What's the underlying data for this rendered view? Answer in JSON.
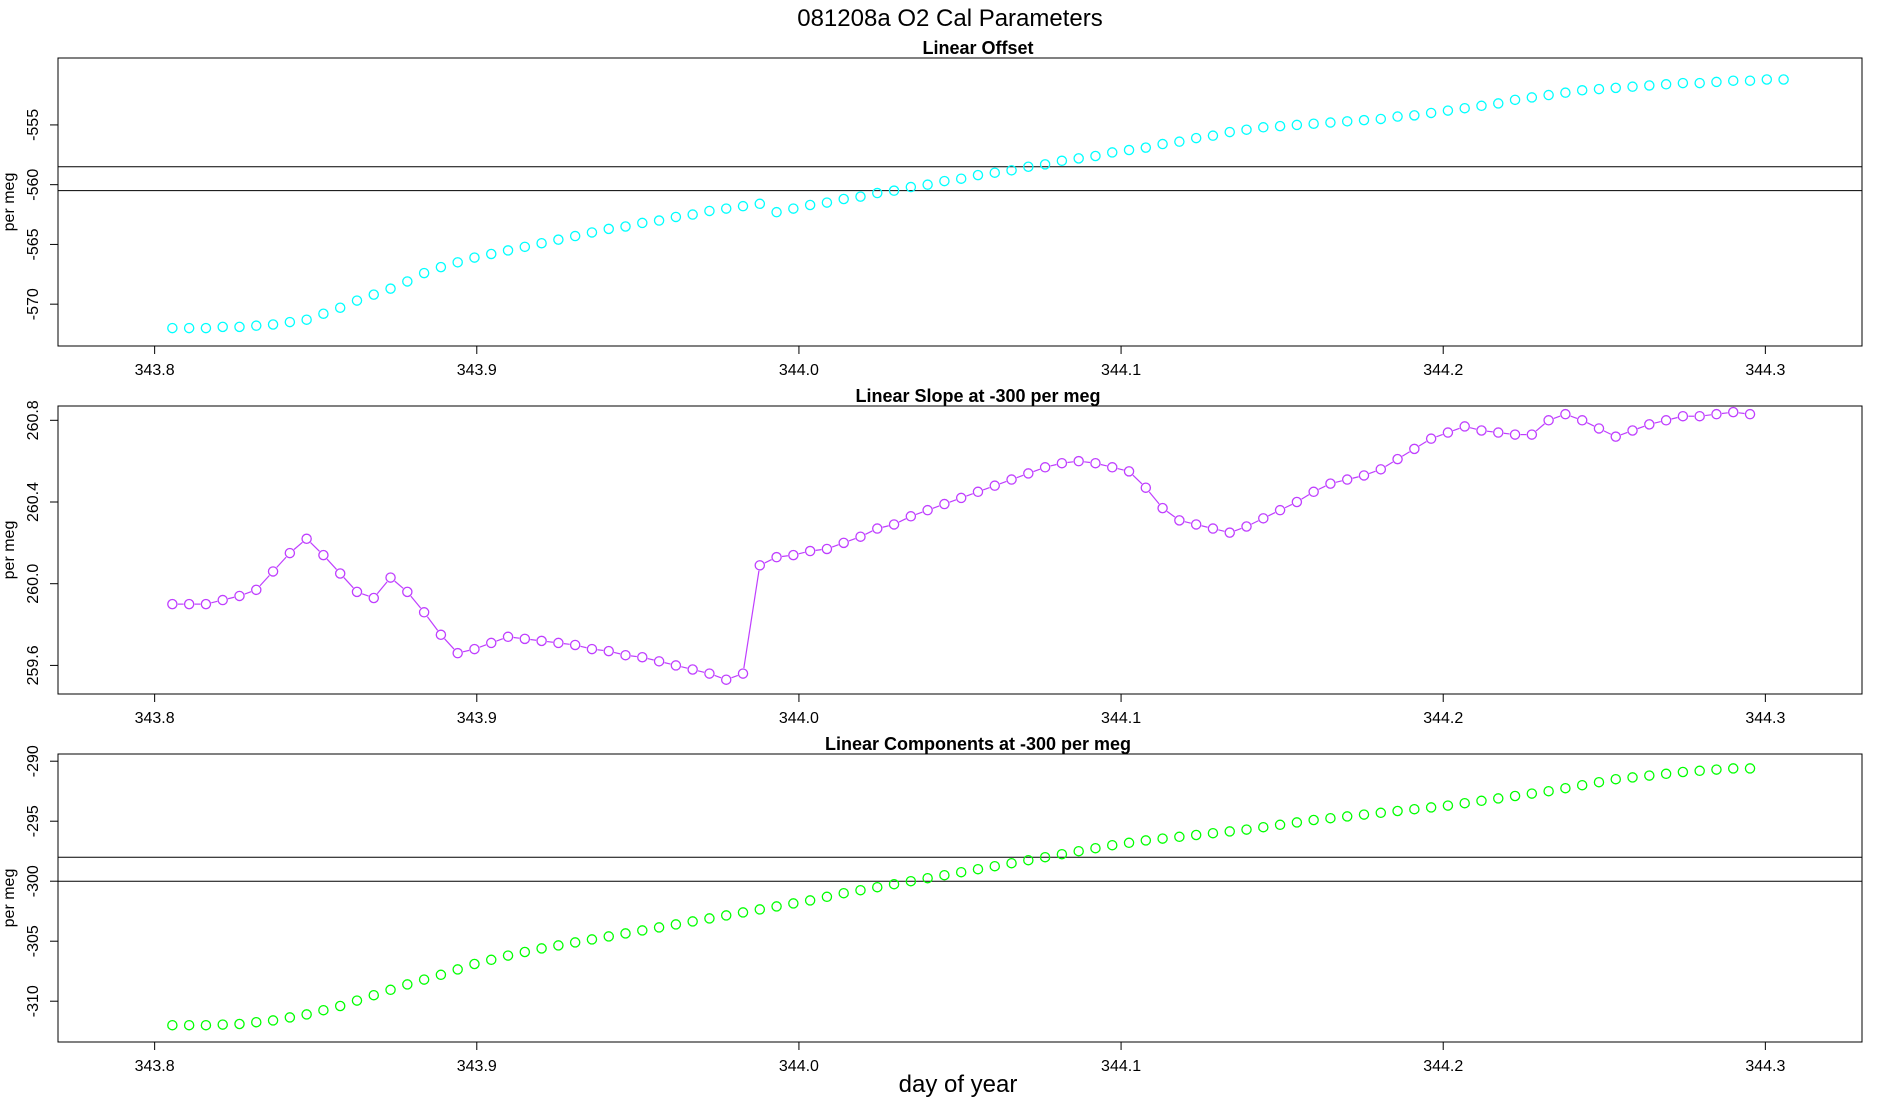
{
  "figure": {
    "title": "081208a   O2 Cal Parameters",
    "xlabel": "day of year"
  },
  "chart_data": [
    {
      "type": "scatter",
      "title": "Linear Offset",
      "xlabel": "",
      "ylabel": "per meg",
      "color": "#00ffff",
      "marker": "open-circle",
      "connect_lines": false,
      "xlim": [
        343.77,
        344.33
      ],
      "ylim": [
        -573.5,
        -549.4
      ],
      "xticks": [
        343.8,
        343.9,
        344.0,
        344.1,
        344.2,
        344.3
      ],
      "xtick_labels": [
        "343.8",
        "343.9",
        "344.0",
        "344.1",
        "344.2",
        "344.3"
      ],
      "yticks": [
        -570,
        -565,
        -560,
        -555
      ],
      "ytick_labels": [
        "-570",
        "-565",
        "-560",
        "-555"
      ],
      "hlines": [
        -558.5,
        -560.5
      ],
      "x_start": 343.8055,
      "x_step": 0.00521,
      "values": [
        -572.0,
        -572.0,
        -572.0,
        -571.9,
        -571.9,
        -571.8,
        -571.7,
        -571.5,
        -571.3,
        -570.8,
        -570.3,
        -569.7,
        -569.2,
        -568.7,
        -568.1,
        -567.4,
        -566.9,
        -566.5,
        -566.1,
        -565.8,
        -565.5,
        -565.2,
        -564.9,
        -564.6,
        -564.3,
        -564.0,
        -563.7,
        -563.5,
        -563.2,
        -563.0,
        -562.7,
        -562.5,
        -562.2,
        -562.0,
        -561.8,
        -561.6,
        -562.3,
        -562.0,
        -561.7,
        -561.5,
        -561.2,
        -561.0,
        -560.7,
        -560.5,
        -560.2,
        -560.0,
        -559.7,
        -559.5,
        -559.2,
        -559.0,
        -558.8,
        -558.5,
        -558.3,
        -558.0,
        -557.8,
        -557.6,
        -557.3,
        -557.1,
        -556.9,
        -556.6,
        -556.4,
        -556.1,
        -555.9,
        -555.6,
        -555.4,
        -555.2,
        -555.1,
        -555.0,
        -554.9,
        -554.8,
        -554.7,
        -554.6,
        -554.5,
        -554.3,
        -554.2,
        -554.0,
        -553.8,
        -553.6,
        -553.4,
        -553.2,
        -552.9,
        -552.7,
        -552.5,
        -552.3,
        -552.1,
        -552.0,
        -551.9,
        -551.8,
        -551.7,
        -551.6,
        -551.5,
        -551.5,
        -551.4,
        -551.3,
        -551.3,
        -551.2,
        -551.2
      ]
    },
    {
      "type": "line",
      "title": "Linear Slope at -300 per meg",
      "xlabel": "",
      "ylabel": "per meg",
      "color": "#bf3eff",
      "marker": "open-circle",
      "connect_lines": true,
      "xlim": [
        343.77,
        344.33
      ],
      "ylim": [
        259.46,
        260.87
      ],
      "xticks": [
        343.8,
        343.9,
        344.0,
        344.1,
        344.2,
        344.3
      ],
      "xtick_labels": [
        "343.8",
        "343.9",
        "344.0",
        "344.1",
        "344.2",
        "344.3"
      ],
      "yticks": [
        259.6,
        260.0,
        260.4,
        260.8
      ],
      "ytick_labels": [
        "259.6",
        "260.0",
        "260.4",
        "260.8"
      ],
      "hlines": [],
      "x_start": 343.8055,
      "x_step": 0.00521,
      "values": [
        259.9,
        259.9,
        259.9,
        259.92,
        259.94,
        259.97,
        260.06,
        260.15,
        260.22,
        260.14,
        260.05,
        259.96,
        259.93,
        260.03,
        259.96,
        259.86,
        259.75,
        259.66,
        259.68,
        259.71,
        259.74,
        259.73,
        259.72,
        259.71,
        259.7,
        259.68,
        259.67,
        259.65,
        259.64,
        259.62,
        259.6,
        259.58,
        259.56,
        259.53,
        259.56,
        260.09,
        260.13,
        260.14,
        260.16,
        260.17,
        260.2,
        260.23,
        260.27,
        260.29,
        260.33,
        260.36,
        260.39,
        260.42,
        260.45,
        260.48,
        260.51,
        260.54,
        260.57,
        260.59,
        260.6,
        260.59,
        260.57,
        260.55,
        260.47,
        260.37,
        260.31,
        260.29,
        260.27,
        260.25,
        260.28,
        260.32,
        260.36,
        260.4,
        260.45,
        260.49,
        260.51,
        260.53,
        260.56,
        260.61,
        260.66,
        260.71,
        260.74,
        260.77,
        260.75,
        260.74,
        260.73,
        260.73,
        260.8,
        260.83,
        260.8,
        260.76,
        260.72,
        260.75,
        260.78,
        260.8,
        260.82,
        260.82,
        260.83,
        260.84,
        260.83
      ]
    },
    {
      "type": "scatter",
      "title": "Linear Components at -300 per meg",
      "xlabel": "",
      "ylabel": "per meg",
      "color": "#00ff00",
      "marker": "open-circle",
      "connect_lines": false,
      "xlim": [
        343.77,
        344.33
      ],
      "ylim": [
        -313.4,
        -289.4
      ],
      "xticks": [
        343.8,
        343.9,
        344.0,
        344.1,
        344.2,
        344.3
      ],
      "xtick_labels": [
        "343.8",
        "343.9",
        "344.0",
        "344.1",
        "344.2",
        "344.3"
      ],
      "yticks": [
        -310,
        -305,
        -300,
        -295,
        -290
      ],
      "ytick_labels": [
        "-310",
        "-305",
        "-300",
        "-295",
        "-290"
      ],
      "hlines": [
        -298.0,
        -300.0
      ],
      "x_start": 343.8055,
      "x_step": 0.00521,
      "values": [
        -312.0,
        -312.0,
        -312.0,
        -311.95,
        -311.9,
        -311.75,
        -311.6,
        -311.35,
        -311.1,
        -310.75,
        -310.4,
        -309.95,
        -309.5,
        -309.05,
        -308.6,
        -308.2,
        -307.8,
        -307.35,
        -306.9,
        -306.55,
        -306.2,
        -305.9,
        -305.6,
        -305.35,
        -305.1,
        -304.85,
        -304.6,
        -304.35,
        -304.1,
        -303.85,
        -303.6,
        -303.35,
        -303.1,
        -302.85,
        -302.6,
        -302.35,
        -302.1,
        -301.85,
        -301.6,
        -301.3,
        -301.0,
        -300.75,
        -300.5,
        -300.25,
        -300.0,
        -299.75,
        -299.5,
        -299.25,
        -299.0,
        -298.75,
        -298.5,
        -298.25,
        -298.0,
        -297.75,
        -297.5,
        -297.25,
        -297.0,
        -296.8,
        -296.6,
        -296.45,
        -296.3,
        -296.15,
        -296.0,
        -295.85,
        -295.7,
        -295.5,
        -295.3,
        -295.1,
        -294.9,
        -294.75,
        -294.6,
        -294.45,
        -294.3,
        -294.15,
        -294.0,
        -293.85,
        -293.7,
        -293.5,
        -293.3,
        -293.1,
        -292.9,
        -292.7,
        -292.5,
        -292.25,
        -292.0,
        -291.75,
        -291.5,
        -291.35,
        -291.2,
        -291.05,
        -290.9,
        -290.8,
        -290.7,
        -290.6,
        -290.6
      ]
    }
  ]
}
